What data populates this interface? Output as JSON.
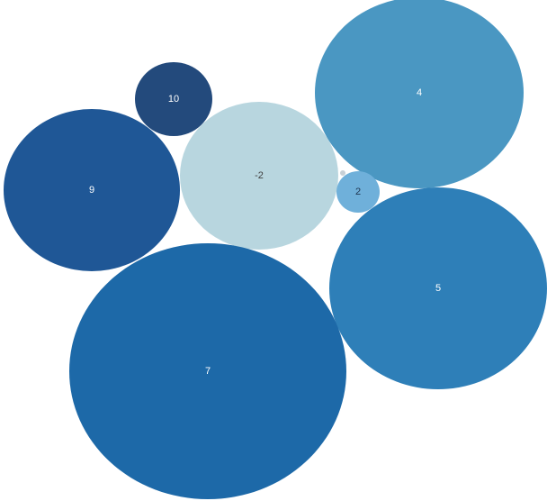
{
  "chart_data": {
    "type": "bubble",
    "title": "",
    "grid": false,
    "legend": "none",
    "items": [
      {
        "label": "10",
        "value": 10,
        "color": "#234a7c",
        "label_color": "#ffffff"
      },
      {
        "label": "9",
        "value": 9,
        "color": "#1f5796",
        "label_color": "#ffffff"
      },
      {
        "label": "-2",
        "value": -2,
        "color": "#b8d6df",
        "label_color": "#404040"
      },
      {
        "label": "4",
        "value": 4,
        "color": "#4a97c2",
        "label_color": "#ffffff"
      },
      {
        "label": "2",
        "value": 2,
        "color": "#6fb0da",
        "label_color": "#1f3550"
      },
      {
        "label": "5",
        "value": 5,
        "color": "#2e7fb8",
        "label_color": "#ffffff"
      },
      {
        "label": "7",
        "value": 7,
        "color": "#1d69a8",
        "label_color": "#ffffff"
      }
    ],
    "marker": {
      "color": "#c8d0d6"
    }
  }
}
